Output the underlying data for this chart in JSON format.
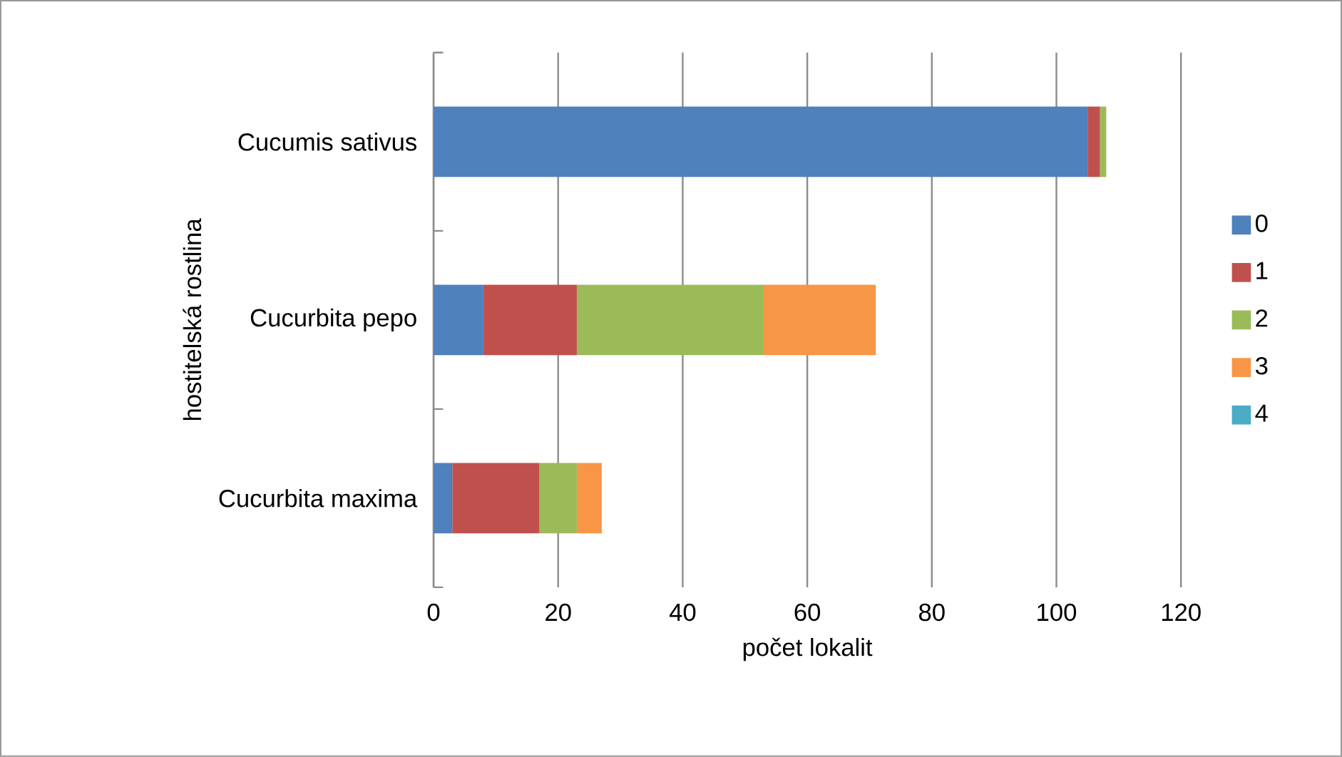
{
  "chart_data": {
    "type": "bar",
    "orientation": "horizontal",
    "stacked": true,
    "xlabel": "počet lokalit",
    "ylabel": "hostitelská rostlina",
    "categories": [
      "Cucumis sativus",
      "Cucurbita pepo",
      "Cucurbita maxima"
    ],
    "series": [
      {
        "name": "0",
        "color": "#4f81bd",
        "values": [
          105,
          8,
          3
        ]
      },
      {
        "name": "1",
        "color": "#c0504d",
        "values": [
          2,
          15,
          14
        ]
      },
      {
        "name": "2",
        "color": "#9bbb59",
        "values": [
          1,
          30,
          6
        ]
      },
      {
        "name": "3",
        "color": "#f79646",
        "values": [
          0,
          18,
          4
        ]
      },
      {
        "name": "4",
        "color": "#4bacc6",
        "values": [
          0,
          0,
          0
        ]
      }
    ],
    "xlim": [
      0,
      120
    ],
    "xticks": [
      0,
      20,
      40,
      60,
      80,
      100,
      120
    ],
    "grid": "x",
    "legend": "right"
  }
}
